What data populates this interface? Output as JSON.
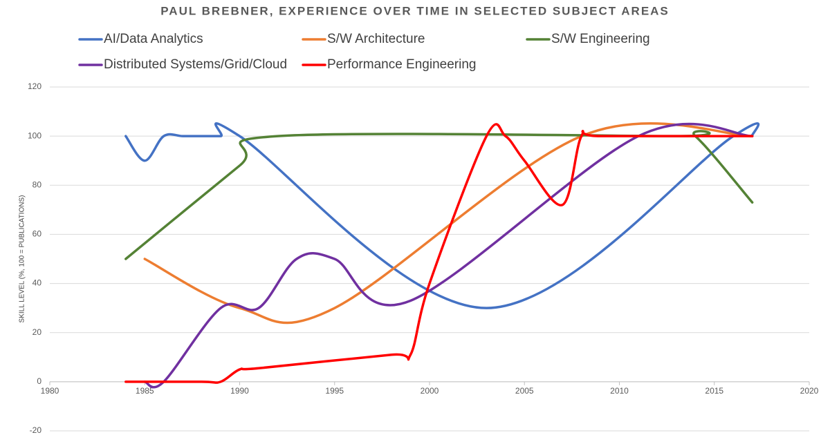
{
  "chart_data": {
    "type": "line",
    "title": "PAUL BREBNER, EXPERIENCE OVER TIME IN SELECTED SUBJECT AREAS",
    "y_label": "SKILL LEVEL (%, 100 = PUBLICATIONS)",
    "xlim": [
      1980,
      2020
    ],
    "xticks": [
      1980,
      1985,
      1990,
      1995,
      2000,
      2005,
      2010,
      2015,
      2020
    ],
    "ylim": [
      -20,
      120
    ],
    "yticks": [
      -20,
      0,
      20,
      40,
      60,
      80,
      100,
      120
    ],
    "grid": true,
    "smooth": true,
    "series": [
      {
        "name": "AI/Data Analytics",
        "color": "#4472c4",
        "x": [
          1984,
          1985,
          1986,
          1987,
          1988,
          1989,
          1990,
          2003,
          2016,
          2017
        ],
        "values": [
          100,
          90,
          100,
          100,
          100,
          100,
          100,
          30,
          100,
          100
        ]
      },
      {
        "name": "S/W Architecture",
        "color": "#ed7d31",
        "x": [
          1985,
          1990,
          1995,
          2008,
          2017
        ],
        "values": [
          50,
          30,
          30,
          100,
          100
        ]
      },
      {
        "name": "S/W Engineering",
        "color": "#548235",
        "x": [
          1984,
          1990,
          1992,
          2013,
          2014,
          2017
        ],
        "values": [
          50,
          88,
          100,
          100,
          100,
          73
        ]
      },
      {
        "name": "Distributed Systems/Grid/Cloud",
        "color": "#7030a0",
        "x": [
          1985,
          1986,
          1989,
          1991,
          1993,
          1995,
          1999,
          2011,
          2017
        ],
        "values": [
          0,
          0,
          30,
          30,
          50,
          50,
          33,
          100,
          100
        ]
      },
      {
        "name": "Performance Engineering",
        "color": "#ff0000",
        "x": [
          1984,
          1988,
          1989,
          1990,
          1991,
          1998,
          1999,
          2000,
          2003,
          2004,
          2005,
          2007,
          2008,
          2009,
          2017
        ],
        "values": [
          0,
          0,
          0,
          5,
          5.5,
          11,
          11,
          40,
          100,
          100,
          90,
          72,
          100,
          100,
          100
        ]
      }
    ]
  }
}
